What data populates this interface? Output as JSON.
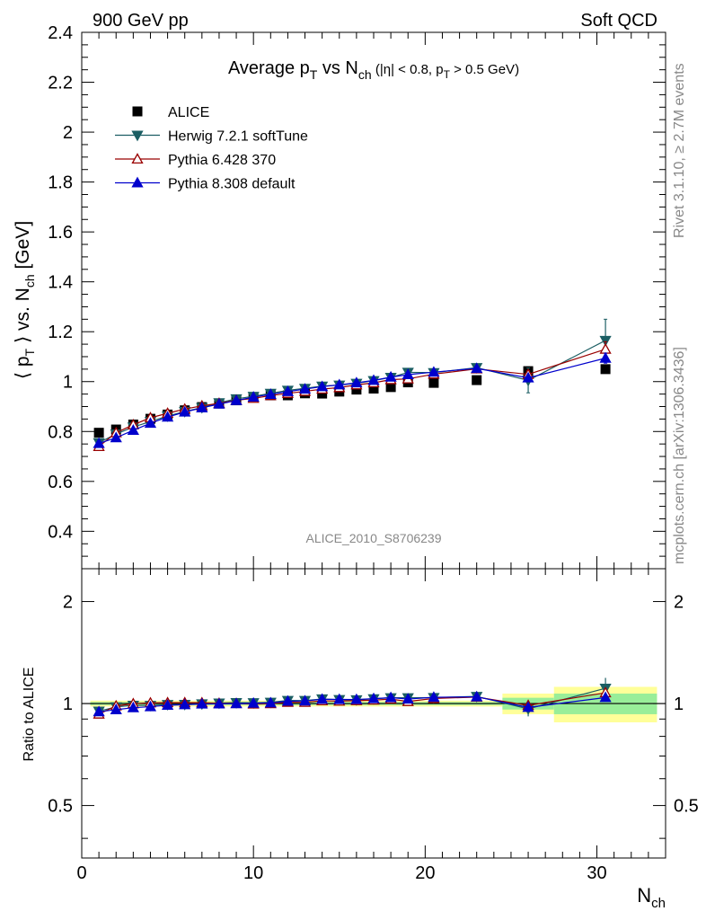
{
  "header": {
    "left": "900 GeV pp",
    "right": "Soft QCD"
  },
  "side": {
    "rivet": "Rivet 3.1.10, ≥ 2.7M events",
    "mcplots": "mcplots.cern.ch [arXiv:1306.3436]"
  },
  "chart_data": {
    "type": "scatter",
    "title": "Average pT vs Nch (|η| < 0.8, pT > 0.5 GeV)",
    "title_parts": {
      "a": "Average p",
      "a_sub": "T",
      "b": " vs N",
      "b_sub": "ch",
      "c": " (|η| < 0.8, p",
      "c_sub": "T",
      "d": " > 0.5 GeV)"
    },
    "watermark": "ALICE_2010_S8706239",
    "xlabel": "N",
    "xlabel_sub": "ch",
    "ylabel": "⟨ p",
    "ylabel_sub": "T",
    "ylabel_mid": " ⟩ vs. N",
    "ylabel_sub2": "ch",
    "ylabel_end": " [GeV]",
    "ratio_ylabel": "Ratio to ALICE",
    "xlim": [
      0,
      34
    ],
    "ylim": [
      0.25,
      2.4
    ],
    "ratio_ylim": [
      0.35,
      2.5
    ],
    "xticks": [
      0,
      10,
      20,
      30
    ],
    "yticks": [
      0.4,
      0.6,
      0.8,
      1,
      1.2,
      1.4,
      1.6,
      1.8,
      2,
      2.2,
      2.4
    ],
    "ratio_yticks": [
      0.5,
      1,
      2
    ],
    "legend_position": "top-left",
    "x": [
      1,
      2,
      3,
      4,
      5,
      6,
      7,
      8,
      9,
      10,
      11,
      12,
      13,
      14,
      15,
      16,
      17,
      18,
      19,
      20.5,
      23,
      26,
      30.5
    ],
    "bands": [
      {
        "x0": 0.5,
        "x1": 24.5,
        "inner": 0.01,
        "outer": 0.02
      },
      {
        "x0": 24.5,
        "x1": 27.5,
        "inner": 0.04,
        "outer": 0.07
      },
      {
        "x0": 27.5,
        "x1": 33.5,
        "inner": 0.07,
        "outer": 0.12
      }
    ],
    "series": [
      {
        "name": "ALICE",
        "marker": "square",
        "color": "#000000",
        "line": false,
        "values": [
          0.795,
          0.808,
          0.828,
          0.851,
          0.868,
          0.885,
          0.898,
          0.912,
          0.925,
          0.936,
          0.945,
          0.945,
          0.953,
          0.952,
          0.96,
          0.968,
          0.972,
          0.978,
          0.997,
          0.995,
          1.006,
          1.042,
          1.05
        ]
      },
      {
        "name": "Herwig 7.2.1 softTune",
        "marker": "tri-down",
        "color": "#1b5e63",
        "line": true,
        "values": [
          0.755,
          0.79,
          0.818,
          0.84,
          0.862,
          0.88,
          0.896,
          0.915,
          0.931,
          0.941,
          0.953,
          0.965,
          0.973,
          0.982,
          0.986,
          0.993,
          1.004,
          1.017,
          1.037,
          1.036,
          1.056,
          1.005,
          1.165
        ],
        "errors": [
          0,
          0,
          0,
          0,
          0,
          0,
          0,
          0,
          0,
          0,
          0,
          0,
          0,
          0,
          0,
          0,
          0,
          0,
          0,
          0,
          0,
          0.05,
          0.085
        ]
      },
      {
        "name": "Pythia 6.428 370",
        "marker": "tri-up-open",
        "color": "#990000",
        "line": true,
        "values": [
          0.74,
          0.795,
          0.827,
          0.855,
          0.873,
          0.89,
          0.903,
          0.913,
          0.925,
          0.933,
          0.944,
          0.953,
          0.961,
          0.97,
          0.976,
          0.987,
          0.995,
          1.008,
          1.011,
          1.03,
          1.051,
          1.029,
          1.13
        ],
        "errors": [
          0,
          0,
          0,
          0,
          0,
          0,
          0,
          0,
          0,
          0,
          0,
          0,
          0,
          0,
          0,
          0,
          0,
          0,
          0,
          0,
          0,
          0.015,
          0.03
        ]
      },
      {
        "name": "Pythia 8.308 default",
        "marker": "tri-up",
        "color": "#0000cc",
        "line": true,
        "values": [
          0.752,
          0.775,
          0.805,
          0.833,
          0.858,
          0.878,
          0.895,
          0.91,
          0.924,
          0.938,
          0.949,
          0.96,
          0.97,
          0.98,
          0.987,
          0.995,
          1.005,
          1.018,
          1.028,
          1.038,
          1.053,
          1.015,
          1.094
        ],
        "errors": [
          0,
          0,
          0,
          0,
          0,
          0,
          0,
          0,
          0,
          0,
          0,
          0,
          0,
          0,
          0,
          0,
          0,
          0,
          0,
          0,
          0,
          0.01,
          0.02
        ]
      }
    ]
  }
}
